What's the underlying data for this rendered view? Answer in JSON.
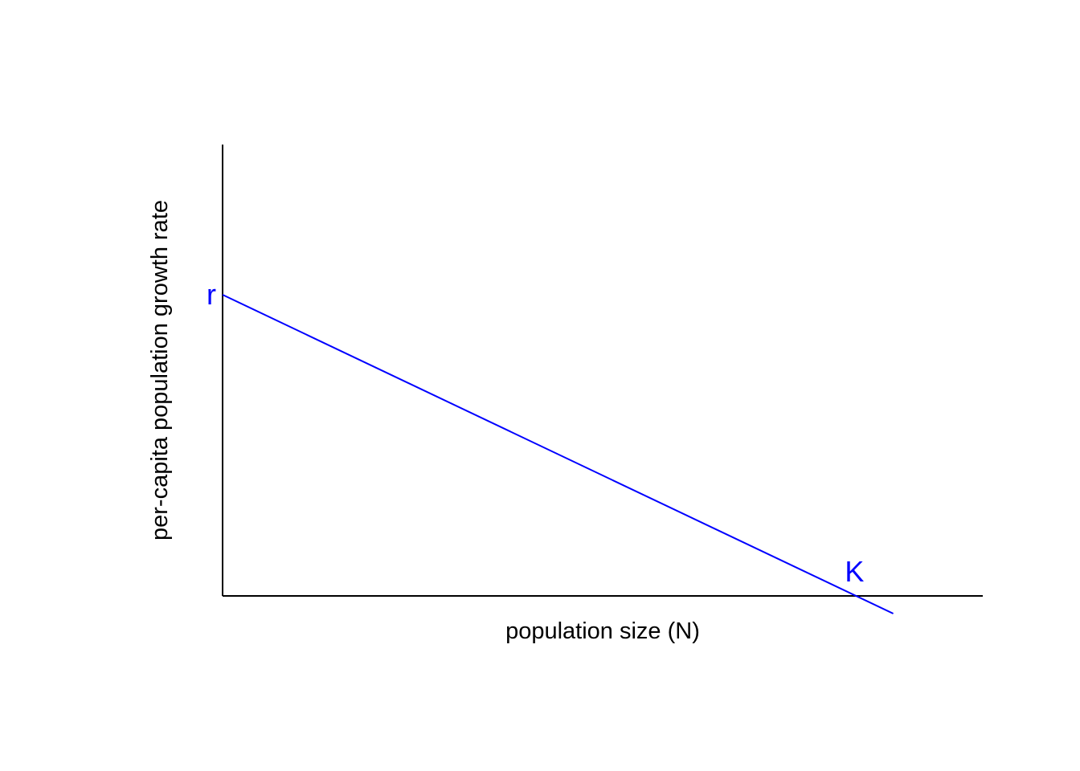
{
  "chart_data": {
    "type": "line",
    "title": "",
    "xlabel": "population size (N)",
    "ylabel": "per-capita population growth rate",
    "xlim": [
      0,
      1.2
    ],
    "ylim": [
      0,
      1.5
    ],
    "grid": false,
    "legend": "none",
    "show_tick_labels": false,
    "line_color": "#0000ff",
    "series": [
      {
        "x": [
          0,
          1.06
        ],
        "y": [
          1,
          -0.06
        ]
      }
    ],
    "annotations": [
      {
        "text": "r",
        "x": 0,
        "y": 1,
        "color": "#0000ff"
      },
      {
        "text": "K",
        "x": 1,
        "y": 0,
        "color": "#0000ff"
      }
    ]
  }
}
